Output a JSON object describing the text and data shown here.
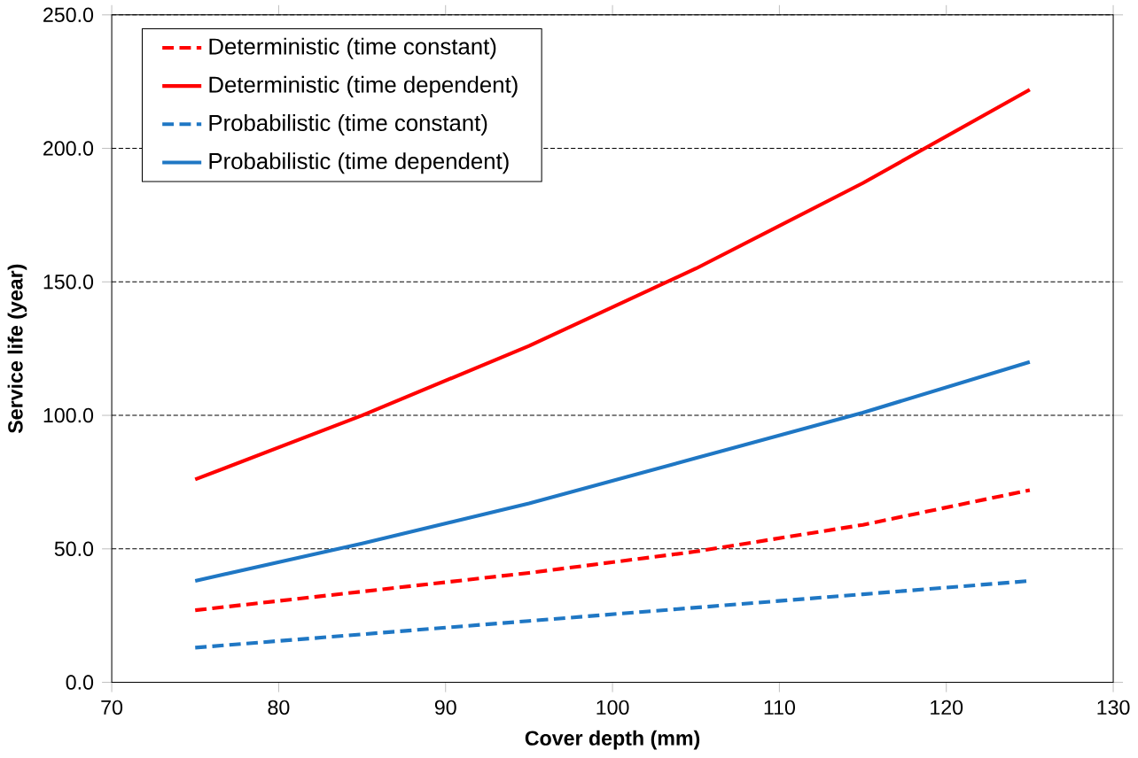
{
  "chart_data": {
    "type": "line",
    "xlabel": "Cover depth (mm)",
    "ylabel": "Service life (year)",
    "xlim": [
      70,
      130
    ],
    "xticks": [
      70,
      80,
      90,
      100,
      110,
      120,
      130
    ],
    "ylim": [
      0,
      250
    ],
    "yticks": [
      {
        "value": 0,
        "label": "0.0"
      },
      {
        "value": 50,
        "label": "50.0"
      },
      {
        "value": 100,
        "label": "100.0"
      },
      {
        "value": 150,
        "label": "150.0"
      },
      {
        "value": 200,
        "label": "200.0"
      },
      {
        "value": 250,
        "label": "250.0"
      }
    ],
    "grid": "y",
    "legend": "top left",
    "marker": "none",
    "series": [
      {
        "name": "Deterministic (time constant)",
        "color": "#ff0000",
        "line_style": "dashed",
        "x": [
          75,
          85,
          95,
          105,
          115,
          125
        ],
        "values": [
          27,
          34,
          41,
          49,
          59,
          72
        ]
      },
      {
        "name": "Deterministic (time dependent)",
        "color": "#ff0000",
        "line_style": "solid",
        "x": [
          75,
          85,
          95,
          105,
          115,
          125
        ],
        "values": [
          76,
          100,
          126,
          155,
          187,
          222
        ]
      },
      {
        "name": "Probabilistic (time constant)",
        "color": "#1f77c4",
        "line_style": "dashed",
        "x": [
          75,
          85,
          95,
          105,
          115,
          125
        ],
        "values": [
          13,
          18,
          23,
          28,
          33,
          38
        ]
      },
      {
        "name": "Probabilistic (time dependent)",
        "color": "#1f77c4",
        "line_style": "solid",
        "x": [
          75,
          85,
          95,
          105,
          115,
          125
        ],
        "values": [
          38,
          52,
          67,
          84,
          101,
          120
        ]
      }
    ]
  }
}
